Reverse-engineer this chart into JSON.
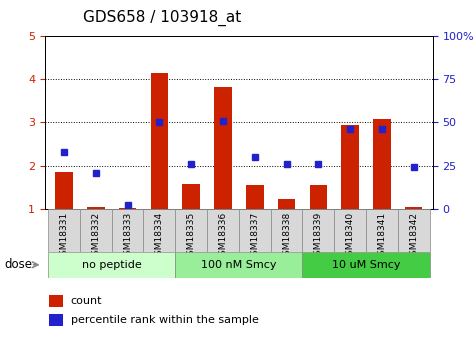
{
  "title": "GDS658 / 103918_at",
  "samples": [
    "GSM18331",
    "GSM18332",
    "GSM18333",
    "GSM18334",
    "GSM18335",
    "GSM18336",
    "GSM18337",
    "GSM18338",
    "GSM18339",
    "GSM18340",
    "GSM18341",
    "GSM18342"
  ],
  "count_values": [
    1.85,
    1.05,
    1.02,
    4.15,
    1.58,
    3.82,
    1.55,
    1.22,
    1.55,
    2.95,
    3.08,
    1.05
  ],
  "percentile_pct": [
    33,
    21,
    2,
    50,
    26,
    51,
    30,
    26,
    26,
    46,
    46,
    24
  ],
  "groups": [
    {
      "label": "no peptide",
      "start": 0,
      "end": 4,
      "color": "#ccffcc"
    },
    {
      "label": "100 nM Smcy",
      "start": 4,
      "end": 8,
      "color": "#99ee99"
    },
    {
      "label": "10 uM Smcy",
      "start": 8,
      "end": 12,
      "color": "#44cc44"
    }
  ],
  "bar_color": "#cc2200",
  "dot_color": "#2222cc",
  "ylim_left": [
    1,
    5
  ],
  "ylim_right": [
    0,
    100
  ],
  "yticks_left": [
    1,
    2,
    3,
    4,
    5
  ],
  "yticks_right": [
    0,
    25,
    50,
    75,
    100
  ],
  "y2labels": [
    "0",
    "25",
    "50",
    "75",
    "100%"
  ],
  "bar_width": 0.55,
  "plot_bg_color": "#ffffff",
  "tick_color_left": "#cc2200",
  "tick_color_right": "#2222cc",
  "title_fontsize": 11,
  "axis_fontsize": 8,
  "xtick_fontsize": 6.5,
  "group_fontsize": 8,
  "legend_fontsize": 8
}
